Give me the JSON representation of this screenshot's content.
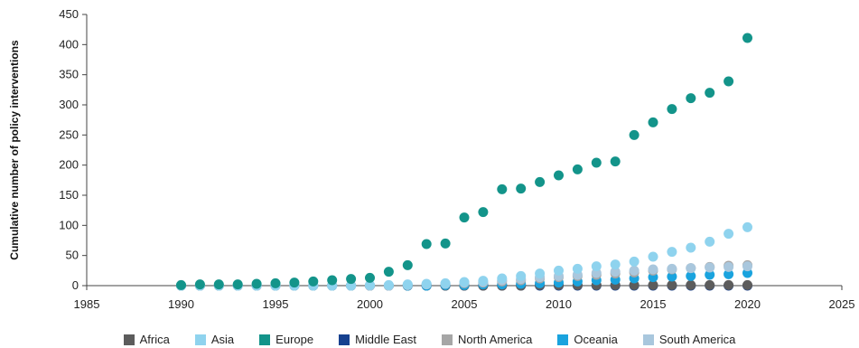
{
  "chart_data": {
    "type": "scatter",
    "title": "",
    "xlabel": "",
    "ylabel": "Cumulative number of policy interventions",
    "xlim": [
      1985,
      2025
    ],
    "ylim": [
      0,
      450
    ],
    "xticks": [
      "1985",
      "1990",
      "1995",
      "2000",
      "2005",
      "2010",
      "2015",
      "2020",
      "2025"
    ],
    "yticks": [
      "0",
      "50",
      "100",
      "150",
      "200",
      "250",
      "300",
      "350",
      "400",
      "450"
    ],
    "grid": false,
    "legend_position": "bottom",
    "x": [
      1990,
      1991,
      1992,
      1993,
      1994,
      1995,
      1996,
      1997,
      1998,
      1999,
      2000,
      2001,
      2002,
      2003,
      2004,
      2005,
      2006,
      2007,
      2008,
      2009,
      2010,
      2011,
      2012,
      2013,
      2014,
      2015,
      2016,
      2017,
      2018,
      2019,
      2020
    ],
    "series": [
      {
        "name": "Africa",
        "color": "#5c5c5c",
        "values": [
          0,
          0,
          0,
          0,
          0,
          0,
          0,
          0,
          0,
          0,
          0,
          0,
          0,
          0,
          0,
          0,
          0,
          0,
          0,
          1,
          1,
          1,
          1,
          1,
          1,
          1,
          1,
          1,
          1,
          1,
          1
        ]
      },
      {
        "name": "Asia",
        "color": "#8fd3ee",
        "values": [
          0,
          0,
          0,
          0,
          0,
          0,
          0,
          0,
          0,
          0,
          1,
          1,
          2,
          3,
          4,
          6,
          8,
          12,
          16,
          20,
          25,
          28,
          32,
          35,
          40,
          48,
          56,
          63,
          73,
          86,
          97
        ]
      },
      {
        "name": "Europe",
        "color": "#13948a",
        "values": [
          1,
          2,
          2,
          2,
          3,
          4,
          5,
          7,
          9,
          11,
          13,
          23,
          34,
          69,
          70,
          113,
          122,
          160,
          161,
          172,
          183,
          193,
          204,
          206,
          250,
          271,
          293,
          311,
          320,
          339,
          411
        ]
      },
      {
        "name": "Middle East",
        "color": "#16418f",
        "values": [
          0,
          0,
          0,
          0,
          0,
          0,
          0,
          0,
          0,
          0,
          0,
          0,
          0,
          0,
          0,
          0,
          0,
          0,
          0,
          0,
          0,
          0,
          0,
          0,
          0,
          0,
          0,
          0,
          0,
          0,
          0
        ]
      },
      {
        "name": "North America",
        "color": "#a6a6a6",
        "values": [
          0,
          0,
          0,
          0,
          0,
          0,
          0,
          0,
          0,
          0,
          0,
          0,
          1,
          2,
          3,
          4,
          5,
          7,
          9,
          12,
          14,
          16,
          18,
          20,
          22,
          25,
          27,
          29,
          31,
          33,
          34
        ]
      },
      {
        "name": "Oceania",
        "color": "#1aa3de",
        "values": [
          0,
          0,
          0,
          0,
          0,
          0,
          0,
          0,
          0,
          0,
          0,
          0,
          0,
          0,
          1,
          1,
          2,
          2,
          3,
          4,
          5,
          7,
          9,
          10,
          12,
          14,
          15,
          16,
          18,
          19,
          21
        ]
      },
      {
        "name": "South America",
        "color": "#a9c7dd",
        "values": [
          0,
          0,
          0,
          0,
          0,
          0,
          0,
          0,
          0,
          0,
          0,
          0,
          1,
          2,
          3,
          5,
          6,
          9,
          11,
          14,
          16,
          18,
          21,
          23,
          25,
          27,
          28,
          29,
          30,
          31,
          32
        ]
      }
    ]
  }
}
